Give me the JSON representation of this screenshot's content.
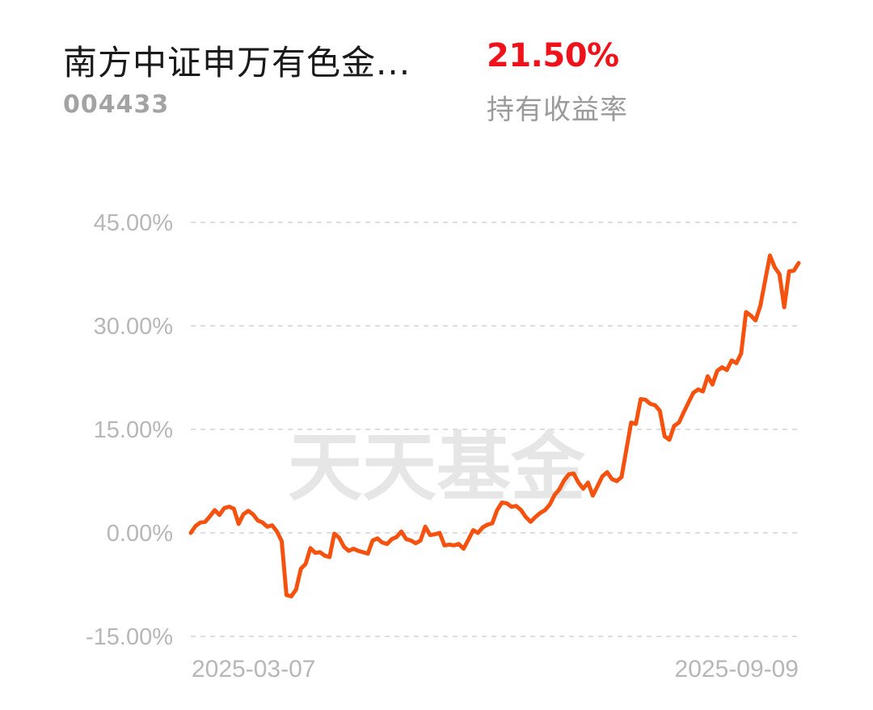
{
  "header": {
    "fund_name": "南方中证申万有色金...",
    "fund_code": "004433",
    "return_value": "21.50%",
    "return_label": "持有收益率"
  },
  "watermark": "天天基金",
  "colors": {
    "line": "#f5520f",
    "return": "#f0121a",
    "axis_text": "#b7b7b7",
    "grid": "#dedede"
  },
  "chart_data": {
    "type": "line",
    "yticks": [
      "45.00%",
      "30.00%",
      "15.00%",
      "0.00%",
      "-15.00%"
    ],
    "ytick_values": [
      45,
      30,
      15,
      0,
      -15
    ],
    "ylim": [
      -15,
      45
    ],
    "x_start_label": "2025-03-07",
    "x_end_label": "2025-09-09",
    "grid": true,
    "series": [
      {
        "values": [
          0.0,
          1.0,
          1.5,
          1.6,
          2.4,
          3.3,
          2.6,
          3.6,
          3.8,
          3.5,
          1.3,
          2.7,
          3.2,
          2.7,
          1.8,
          1.5,
          0.9,
          1.1,
          0.2,
          -1.2,
          -9.0,
          -9.2,
          -8.2,
          -5.2,
          -4.5,
          -2.2,
          -2.9,
          -2.8,
          -3.3,
          -3.5,
          -0.1,
          -0.7,
          -2.0,
          -2.6,
          -2.3,
          -2.6,
          -2.8,
          -3.0,
          -1.1,
          -0.8,
          -1.4,
          -1.6,
          -0.9,
          -0.6,
          0.2,
          -0.9,
          -1.1,
          -1.5,
          -1.1,
          0.9,
          -0.3,
          -0.2,
          0.0,
          -1.8,
          -1.7,
          -1.8,
          -1.6,
          -2.3,
          -1.0,
          0.4,
          0.0,
          0.8,
          1.2,
          1.4,
          3.3,
          4.4,
          4.3,
          3.8,
          3.9,
          3.3,
          2.3,
          1.6,
          2.3,
          2.9,
          3.3,
          4.1,
          5.5,
          6.3,
          7.6,
          8.5,
          8.6,
          7.3,
          6.4,
          7.3,
          5.4,
          6.8,
          8.2,
          8.8,
          7.8,
          7.5,
          8.1,
          12.0,
          16.0,
          15.8,
          19.4,
          19.3,
          18.7,
          18.5,
          17.7,
          14.0,
          13.5,
          15.5,
          16.0,
          17.5,
          18.9,
          20.3,
          20.8,
          20.5,
          22.7,
          21.5,
          23.5,
          24.0,
          23.6,
          25.0,
          24.6,
          26.0,
          32.0,
          31.5,
          30.8,
          32.9,
          36.6,
          40.2,
          38.5,
          37.5,
          32.7,
          37.9,
          38.0,
          39.1
        ]
      }
    ]
  }
}
